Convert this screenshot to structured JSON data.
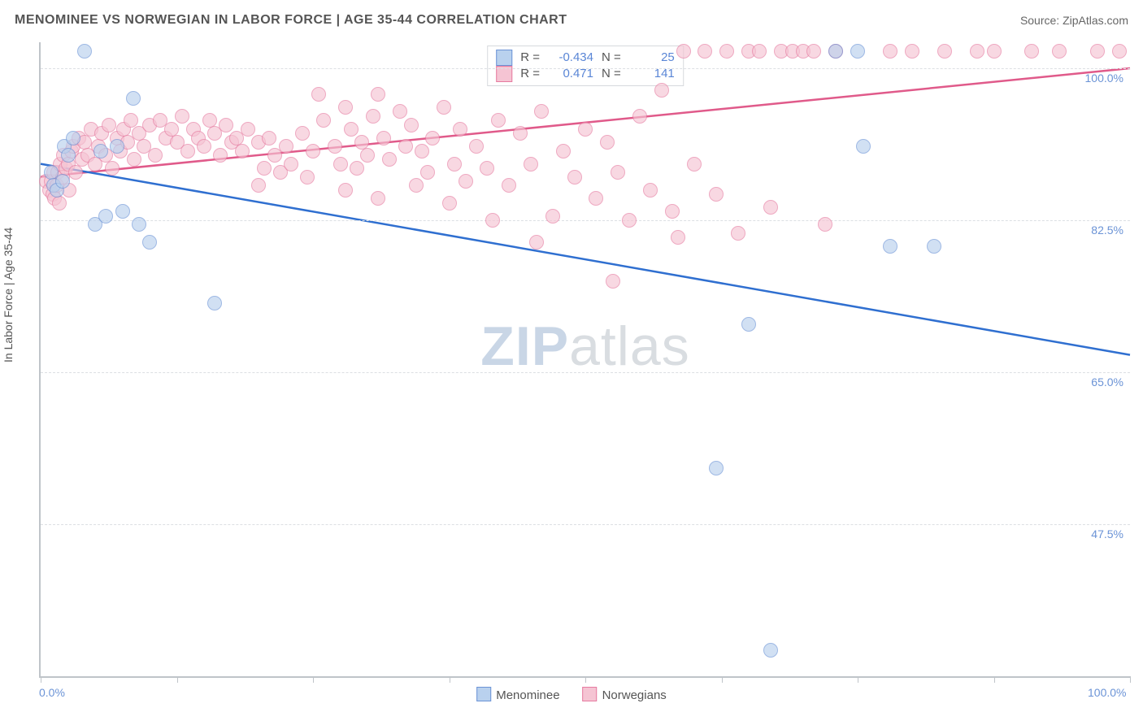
{
  "title": "MENOMINEE VS NORWEGIAN IN LABOR FORCE | AGE 35-44 CORRELATION CHART",
  "source": "Source: ZipAtlas.com",
  "ylabel": "In Labor Force | Age 35-44",
  "watermark_bold": "ZIP",
  "watermark_light": "atlas",
  "legend": {
    "series1": "Menominee",
    "series2": "Norwegians"
  },
  "correlation": {
    "r_label": "R =",
    "n_label": "N =",
    "menominee_r": "-0.434",
    "menominee_n": "25",
    "norwegians_r": "0.471",
    "norwegians_n": "141"
  },
  "colors": {
    "menominee_fill": "#b9d1ee",
    "menominee_stroke": "#6b93d6",
    "norwegians_fill": "#f5c4d3",
    "norwegians_stroke": "#e67ba0",
    "axis": "#bfc4c9",
    "grid": "#dcdfe3",
    "tick_text": "#6b93d6",
    "title_text": "#555555",
    "trend_menominee": "#2f6fd0",
    "trend_norwegians": "#e05a8a",
    "background": "#ffffff"
  },
  "axes": {
    "x_min": 0.0,
    "x_max": 100.0,
    "y_min": 30.0,
    "y_max": 103.0,
    "y_ticks": [
      47.5,
      65.0,
      82.5,
      100.0
    ],
    "y_tick_labels": [
      "47.5%",
      "65.0%",
      "82.5%",
      "100.0%"
    ],
    "x_start_label": "0.0%",
    "x_end_label": "100.0%",
    "x_tick_positions": [
      0,
      12.5,
      25,
      37.5,
      50,
      62.5,
      75,
      87.5,
      100
    ]
  },
  "trend_lines": {
    "menominee": {
      "x1": 0,
      "y1": 89.0,
      "x2": 100,
      "y2": 67.0
    },
    "norwegians": {
      "x1": 0,
      "y1": 87.5,
      "x2": 100,
      "y2": 100.0
    }
  },
  "points": {
    "menominee": [
      {
        "x": 1.0,
        "y": 88.0
      },
      {
        "x": 1.2,
        "y": 86.5
      },
      {
        "x": 1.5,
        "y": 86.0
      },
      {
        "x": 2.0,
        "y": 87.0
      },
      {
        "x": 2.2,
        "y": 91.0
      },
      {
        "x": 2.5,
        "y": 90.0
      },
      {
        "x": 3.0,
        "y": 92.0
      },
      {
        "x": 4.0,
        "y": 102.0
      },
      {
        "x": 5.0,
        "y": 82.0
      },
      {
        "x": 5.5,
        "y": 90.5
      },
      {
        "x": 6.0,
        "y": 83.0
      },
      {
        "x": 7.0,
        "y": 91.0
      },
      {
        "x": 7.5,
        "y": 83.5
      },
      {
        "x": 8.5,
        "y": 96.5
      },
      {
        "x": 9.0,
        "y": 82.0
      },
      {
        "x": 10.0,
        "y": 80.0
      },
      {
        "x": 16.0,
        "y": 73.0
      },
      {
        "x": 62.0,
        "y": 54.0
      },
      {
        "x": 65.0,
        "y": 70.5
      },
      {
        "x": 67.0,
        "y": 33.0
      },
      {
        "x": 73.0,
        "y": 102.0
      },
      {
        "x": 75.5,
        "y": 91.0
      },
      {
        "x": 78.0,
        "y": 79.5
      },
      {
        "x": 82.0,
        "y": 79.5
      },
      {
        "x": 75.0,
        "y": 102.0
      }
    ],
    "norwegians": [
      {
        "x": 0.5,
        "y": 87.0
      },
      {
        "x": 0.8,
        "y": 86.0
      },
      {
        "x": 1.0,
        "y": 87.0
      },
      {
        "x": 1.1,
        "y": 85.5
      },
      {
        "x": 1.2,
        "y": 88.0
      },
      {
        "x": 1.3,
        "y": 85.0
      },
      {
        "x": 1.5,
        "y": 86.5
      },
      {
        "x": 1.6,
        "y": 88.0
      },
      {
        "x": 1.7,
        "y": 84.5
      },
      {
        "x": 1.8,
        "y": 89.0
      },
      {
        "x": 2.0,
        "y": 87.5
      },
      {
        "x": 2.1,
        "y": 90.0
      },
      {
        "x": 2.3,
        "y": 88.5
      },
      {
        "x": 2.5,
        "y": 89.0
      },
      {
        "x": 2.6,
        "y": 86.0
      },
      {
        "x": 2.8,
        "y": 90.5
      },
      {
        "x": 3.0,
        "y": 91.0
      },
      {
        "x": 3.2,
        "y": 88.0
      },
      {
        "x": 3.5,
        "y": 92.0
      },
      {
        "x": 3.8,
        "y": 89.5
      },
      {
        "x": 4.0,
        "y": 91.5
      },
      {
        "x": 4.3,
        "y": 90.0
      },
      {
        "x": 4.6,
        "y": 93.0
      },
      {
        "x": 5.0,
        "y": 89.0
      },
      {
        "x": 5.3,
        "y": 91.0
      },
      {
        "x": 5.6,
        "y": 92.5
      },
      {
        "x": 6.0,
        "y": 90.0
      },
      {
        "x": 6.3,
        "y": 93.5
      },
      {
        "x": 6.6,
        "y": 88.5
      },
      {
        "x": 7.0,
        "y": 92.0
      },
      {
        "x": 7.3,
        "y": 90.5
      },
      {
        "x": 7.6,
        "y": 93.0
      },
      {
        "x": 8.0,
        "y": 91.5
      },
      {
        "x": 8.3,
        "y": 94.0
      },
      {
        "x": 8.6,
        "y": 89.5
      },
      {
        "x": 9.0,
        "y": 92.5
      },
      {
        "x": 9.5,
        "y": 91.0
      },
      {
        "x": 10.0,
        "y": 93.5
      },
      {
        "x": 10.5,
        "y": 90.0
      },
      {
        "x": 11.0,
        "y": 94.0
      },
      {
        "x": 11.5,
        "y": 92.0
      },
      {
        "x": 12.0,
        "y": 93.0
      },
      {
        "x": 12.5,
        "y": 91.5
      },
      {
        "x": 13.0,
        "y": 94.5
      },
      {
        "x": 13.5,
        "y": 90.5
      },
      {
        "x": 14.0,
        "y": 93.0
      },
      {
        "x": 14.5,
        "y": 92.0
      },
      {
        "x": 15.0,
        "y": 91.0
      },
      {
        "x": 15.5,
        "y": 94.0
      },
      {
        "x": 16.0,
        "y": 92.5
      },
      {
        "x": 16.5,
        "y": 90.0
      },
      {
        "x": 17.0,
        "y": 93.5
      },
      {
        "x": 17.5,
        "y": 91.5
      },
      {
        "x": 18.0,
        "y": 92.0
      },
      {
        "x": 18.5,
        "y": 90.5
      },
      {
        "x": 19.0,
        "y": 93.0
      },
      {
        "x": 20.0,
        "y": 91.5
      },
      {
        "x": 20.5,
        "y": 88.5
      },
      {
        "x": 21.0,
        "y": 92.0
      },
      {
        "x": 21.5,
        "y": 90.0
      },
      {
        "x": 22.0,
        "y": 88.0
      },
      {
        "x": 22.5,
        "y": 91.0
      },
      {
        "x": 23.0,
        "y": 89.0
      },
      {
        "x": 24.0,
        "y": 92.5
      },
      {
        "x": 25.0,
        "y": 90.5
      },
      {
        "x": 25.5,
        "y": 97.0
      },
      {
        "x": 26.0,
        "y": 94.0
      },
      {
        "x": 27.0,
        "y": 91.0
      },
      {
        "x": 27.5,
        "y": 89.0
      },
      {
        "x": 28.0,
        "y": 95.5
      },
      {
        "x": 28.5,
        "y": 93.0
      },
      {
        "x": 29.0,
        "y": 88.5
      },
      {
        "x": 29.5,
        "y": 91.5
      },
      {
        "x": 30.0,
        "y": 90.0
      },
      {
        "x": 30.5,
        "y": 94.5
      },
      {
        "x": 31.0,
        "y": 97.0
      },
      {
        "x": 31.5,
        "y": 92.0
      },
      {
        "x": 32.0,
        "y": 89.5
      },
      {
        "x": 33.0,
        "y": 95.0
      },
      {
        "x": 33.5,
        "y": 91.0
      },
      {
        "x": 34.0,
        "y": 93.5
      },
      {
        "x": 35.0,
        "y": 90.5
      },
      {
        "x": 35.5,
        "y": 88.0
      },
      {
        "x": 36.0,
        "y": 92.0
      },
      {
        "x": 37.0,
        "y": 95.5
      },
      {
        "x": 38.0,
        "y": 89.0
      },
      {
        "x": 38.5,
        "y": 93.0
      },
      {
        "x": 39.0,
        "y": 87.0
      },
      {
        "x": 40.0,
        "y": 91.0
      },
      {
        "x": 41.0,
        "y": 88.5
      },
      {
        "x": 42.0,
        "y": 94.0
      },
      {
        "x": 43.0,
        "y": 86.5
      },
      {
        "x": 44.0,
        "y": 92.5
      },
      {
        "x": 45.0,
        "y": 89.0
      },
      {
        "x": 46.0,
        "y": 95.0
      },
      {
        "x": 47.0,
        "y": 83.0
      },
      {
        "x": 48.0,
        "y": 90.5
      },
      {
        "x": 49.0,
        "y": 87.5
      },
      {
        "x": 50.0,
        "y": 93.0
      },
      {
        "x": 51.0,
        "y": 85.0
      },
      {
        "x": 52.0,
        "y": 91.5
      },
      {
        "x": 53.0,
        "y": 88.0
      },
      {
        "x": 54.0,
        "y": 82.5
      },
      {
        "x": 55.0,
        "y": 94.5
      },
      {
        "x": 56.0,
        "y": 86.0
      },
      {
        "x": 57.0,
        "y": 97.5
      },
      {
        "x": 58.0,
        "y": 83.5
      },
      {
        "x": 59.0,
        "y": 102.0
      },
      {
        "x": 60.0,
        "y": 89.0
      },
      {
        "x": 61.0,
        "y": 102.0
      },
      {
        "x": 62.0,
        "y": 85.5
      },
      {
        "x": 63.0,
        "y": 102.0
      },
      {
        "x": 64.0,
        "y": 81.0
      },
      {
        "x": 65.0,
        "y": 102.0
      },
      {
        "x": 66.0,
        "y": 102.0
      },
      {
        "x": 67.0,
        "y": 84.0
      },
      {
        "x": 68.0,
        "y": 102.0
      },
      {
        "x": 69.0,
        "y": 102.0
      },
      {
        "x": 70.0,
        "y": 102.0
      },
      {
        "x": 71.0,
        "y": 102.0
      },
      {
        "x": 72.0,
        "y": 82.0
      },
      {
        "x": 73.0,
        "y": 102.0
      },
      {
        "x": 52.5,
        "y": 75.5
      },
      {
        "x": 45.5,
        "y": 80.0
      },
      {
        "x": 78.0,
        "y": 102.0
      },
      {
        "x": 58.5,
        "y": 80.5
      },
      {
        "x": 80.0,
        "y": 102.0
      },
      {
        "x": 83.0,
        "y": 102.0
      },
      {
        "x": 86.0,
        "y": 102.0
      },
      {
        "x": 87.5,
        "y": 102.0
      },
      {
        "x": 91.0,
        "y": 102.0
      },
      {
        "x": 93.5,
        "y": 102.0
      },
      {
        "x": 97.0,
        "y": 102.0
      },
      {
        "x": 99.0,
        "y": 102.0
      },
      {
        "x": 41.5,
        "y": 82.5
      },
      {
        "x": 37.5,
        "y": 84.5
      },
      {
        "x": 34.5,
        "y": 86.5
      },
      {
        "x": 31.0,
        "y": 85.0
      },
      {
        "x": 28.0,
        "y": 86.0
      },
      {
        "x": 24.5,
        "y": 87.5
      },
      {
        "x": 20.0,
        "y": 86.5
      }
    ]
  }
}
